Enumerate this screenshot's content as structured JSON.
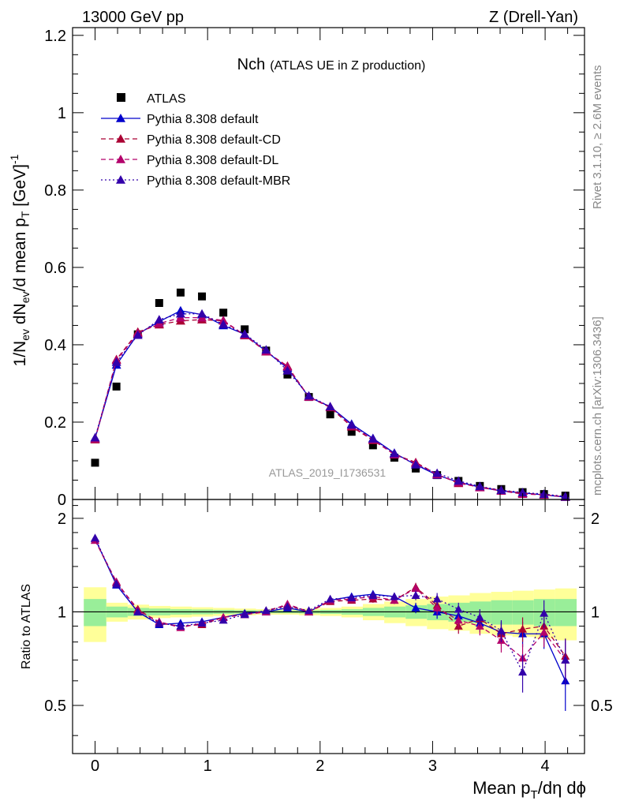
{
  "header": {
    "left": "13000 GeV pp",
    "right": "Z (Drell-Yan)"
  },
  "side_labels": {
    "rivet": "Rivet 3.1.10, ≥ 2.6M events",
    "mcplots": "mcplots.cern.ch [arXiv:1306.3436]"
  },
  "colors": {
    "atlas": "#000000",
    "default": "#0000cc",
    "cd": "#aa0033",
    "dl": "#b3006b",
    "mbr": "#3300aa",
    "band_inner": "#99ee99",
    "band_outer": "#ffff99"
  },
  "chart_data": [
    {
      "type": "scatter",
      "title": "Nch (ATLAS UE in Z production)",
      "title_main": "Nch",
      "title_sub": "(ATLAS UE in Z production)",
      "ylabel": "1/N_ev dN_ev/d mean p_T [GeV]^-1",
      "analysis_label": "ATLAS_2019_I1736531",
      "xlim": [
        -0.2,
        4.35
      ],
      "ylim": [
        0,
        1.22
      ],
      "x_ticks": [
        "0",
        "1",
        "2",
        "3",
        "4"
      ],
      "y_ticks": [
        "0",
        "0.2",
        "0.4",
        "0.6",
        "0.8",
        "1",
        "1.2"
      ],
      "legend_position": "top-left",
      "x": [
        0.0,
        0.19,
        0.38,
        0.57,
        0.76,
        0.95,
        1.14,
        1.33,
        1.52,
        1.71,
        1.9,
        2.09,
        2.28,
        2.47,
        2.66,
        2.85,
        3.04,
        3.23,
        3.42,
        3.61,
        3.8,
        3.99,
        4.18
      ],
      "series": [
        {
          "name": "ATLAS",
          "key": "atlas",
          "marker": "square",
          "line": "none",
          "values": [
            0.095,
            0.292,
            0.427,
            0.508,
            0.535,
            0.525,
            0.483,
            0.44,
            0.385,
            0.323,
            0.265,
            0.22,
            0.175,
            0.14,
            0.108,
            0.08,
            0.063,
            0.048,
            0.035,
            0.027,
            0.019,
            0.014,
            0.01
          ]
        },
        {
          "name": "Pythia 8.308 default",
          "key": "default",
          "marker": "triangle",
          "line": "solid",
          "values": [
            0.158,
            0.348,
            0.428,
            0.46,
            0.488,
            0.478,
            0.45,
            0.427,
            0.383,
            0.34,
            0.265,
            0.24,
            0.195,
            0.158,
            0.12,
            0.09,
            0.063,
            0.045,
            0.032,
            0.022,
            0.017,
            0.012,
            0.006
          ]
        },
        {
          "name": "Pythia 8.308 default-CD",
          "key": "cd",
          "marker": "triangle",
          "line": "dashed",
          "values": [
            0.155,
            0.362,
            0.433,
            0.452,
            0.462,
            0.465,
            0.462,
            0.424,
            0.382,
            0.345,
            0.265,
            0.238,
            0.188,
            0.153,
            0.117,
            0.096,
            0.065,
            0.042,
            0.032,
            0.024,
            0.016,
            0.012,
            0.007
          ]
        },
        {
          "name": "Pythia 8.308 default-DL",
          "key": "dl",
          "marker": "triangle",
          "line": "dashed",
          "values": [
            0.157,
            0.36,
            0.43,
            0.455,
            0.47,
            0.47,
            0.463,
            0.425,
            0.383,
            0.343,
            0.265,
            0.24,
            0.19,
            0.155,
            0.116,
            0.094,
            0.064,
            0.044,
            0.031,
            0.022,
            0.014,
            0.012,
            0.007
          ]
        },
        {
          "name": "Pythia 8.308 default-MBR",
          "key": "mbr",
          "marker": "triangle",
          "line": "dotted",
          "values": [
            0.16,
            0.355,
            0.425,
            0.465,
            0.48,
            0.48,
            0.453,
            0.428,
            0.387,
            0.333,
            0.268,
            0.24,
            0.193,
            0.157,
            0.119,
            0.09,
            0.068,
            0.048,
            0.034,
            0.024,
            0.018,
            0.014,
            0.008
          ]
        }
      ]
    },
    {
      "type": "scatter",
      "title": "Ratio to ATLAS",
      "xlabel": "Mean p_T/dη dϕ",
      "ylabel": "Ratio to ATLAS",
      "xlim": [
        -0.2,
        4.35
      ],
      "ylim": [
        0.35,
        2.3
      ],
      "x_ticks": [
        "0",
        "1",
        "2",
        "3",
        "4"
      ],
      "y_ticks": [
        "0.5",
        "1",
        "2"
      ],
      "reference_line": 1,
      "band_edges": [
        -0.1,
        0.1,
        0.29,
        0.48,
        0.67,
        0.86,
        1.05,
        1.24,
        1.43,
        1.62,
        1.81,
        2.0,
        2.19,
        2.38,
        2.57,
        2.76,
        2.95,
        3.14,
        3.33,
        3.52,
        3.71,
        3.9,
        4.09,
        4.28
      ],
      "band_inner": [
        0.1,
        0.04,
        0.03,
        0.025,
        0.02,
        0.018,
        0.015,
        0.012,
        0.01,
        0.01,
        0.012,
        0.015,
        0.02,
        0.03,
        0.04,
        0.05,
        0.06,
        0.07,
        0.08,
        0.09,
        0.09,
        0.1,
        0.1
      ],
      "band_outer": [
        0.2,
        0.07,
        0.055,
        0.045,
        0.04,
        0.035,
        0.03,
        0.025,
        0.02,
        0.02,
        0.025,
        0.03,
        0.04,
        0.06,
        0.08,
        0.1,
        0.12,
        0.13,
        0.15,
        0.16,
        0.17,
        0.18,
        0.19
      ],
      "x": [
        0.0,
        0.19,
        0.38,
        0.57,
        0.76,
        0.95,
        1.14,
        1.33,
        1.52,
        1.71,
        1.9,
        2.09,
        2.28,
        2.47,
        2.66,
        2.85,
        3.04,
        3.23,
        3.42,
        3.61,
        3.8,
        3.99,
        4.18
      ],
      "series": [
        {
          "name": "Pythia 8.308 default",
          "key": "default",
          "line": "solid",
          "values": [
            1.72,
            1.22,
            1.0,
            0.91,
            0.92,
            0.93,
            0.96,
            0.99,
            1.0,
            1.03,
            1.0,
            1.09,
            1.12,
            1.14,
            1.12,
            1.03,
            1.0,
            0.97,
            0.92,
            0.86,
            0.85,
            0.85,
            0.6
          ],
          "errors": [
            0.03,
            0.02,
            0.01,
            0.01,
            0.01,
            0.01,
            0.01,
            0.01,
            0.01,
            0.01,
            0.01,
            0.02,
            0.02,
            0.03,
            0.03,
            0.04,
            0.05,
            0.05,
            0.06,
            0.07,
            0.08,
            0.09,
            0.12
          ]
        },
        {
          "name": "Pythia 8.308 default-CD",
          "key": "cd",
          "line": "dashed",
          "values": [
            1.7,
            1.24,
            1.02,
            0.92,
            0.9,
            0.91,
            0.96,
            0.98,
            1.01,
            1.05,
            1.0,
            1.08,
            1.09,
            1.1,
            1.09,
            1.2,
            1.05,
            0.9,
            0.95,
            0.85,
            0.88,
            0.9,
            0.72
          ],
          "errors": [
            0.03,
            0.02,
            0.01,
            0.01,
            0.01,
            0.01,
            0.01,
            0.01,
            0.01,
            0.01,
            0.01,
            0.02,
            0.02,
            0.03,
            0.03,
            0.04,
            0.05,
            0.05,
            0.06,
            0.07,
            0.08,
            0.09,
            0.1
          ]
        },
        {
          "name": "Pythia 8.308 default-DL",
          "key": "dl",
          "line": "dashed",
          "values": [
            1.7,
            1.25,
            1.01,
            0.93,
            0.89,
            0.92,
            0.96,
            0.98,
            1.0,
            1.06,
            1.0,
            1.09,
            1.1,
            1.12,
            1.09,
            1.19,
            1.03,
            0.94,
            0.9,
            0.81,
            0.71,
            0.86,
            0.7
          ],
          "errors": [
            0.03,
            0.02,
            0.01,
            0.01,
            0.01,
            0.01,
            0.01,
            0.01,
            0.01,
            0.01,
            0.01,
            0.02,
            0.02,
            0.03,
            0.03,
            0.04,
            0.05,
            0.05,
            0.06,
            0.07,
            0.08,
            0.09,
            0.1
          ]
        },
        {
          "name": "Pythia 8.308 default-MBR",
          "key": "mbr",
          "line": "dotted",
          "values": [
            1.73,
            1.23,
            1.0,
            0.92,
            0.9,
            0.92,
            0.94,
            0.98,
            1.01,
            1.04,
            1.01,
            1.1,
            1.11,
            1.13,
            1.12,
            1.13,
            1.1,
            1.02,
            0.96,
            0.87,
            0.64,
            0.99,
            0.7
          ],
          "errors": [
            0.03,
            0.02,
            0.01,
            0.01,
            0.01,
            0.01,
            0.01,
            0.01,
            0.01,
            0.01,
            0.01,
            0.02,
            0.02,
            0.03,
            0.03,
            0.04,
            0.05,
            0.05,
            0.06,
            0.07,
            0.09,
            0.1,
            0.12
          ]
        }
      ]
    }
  ]
}
